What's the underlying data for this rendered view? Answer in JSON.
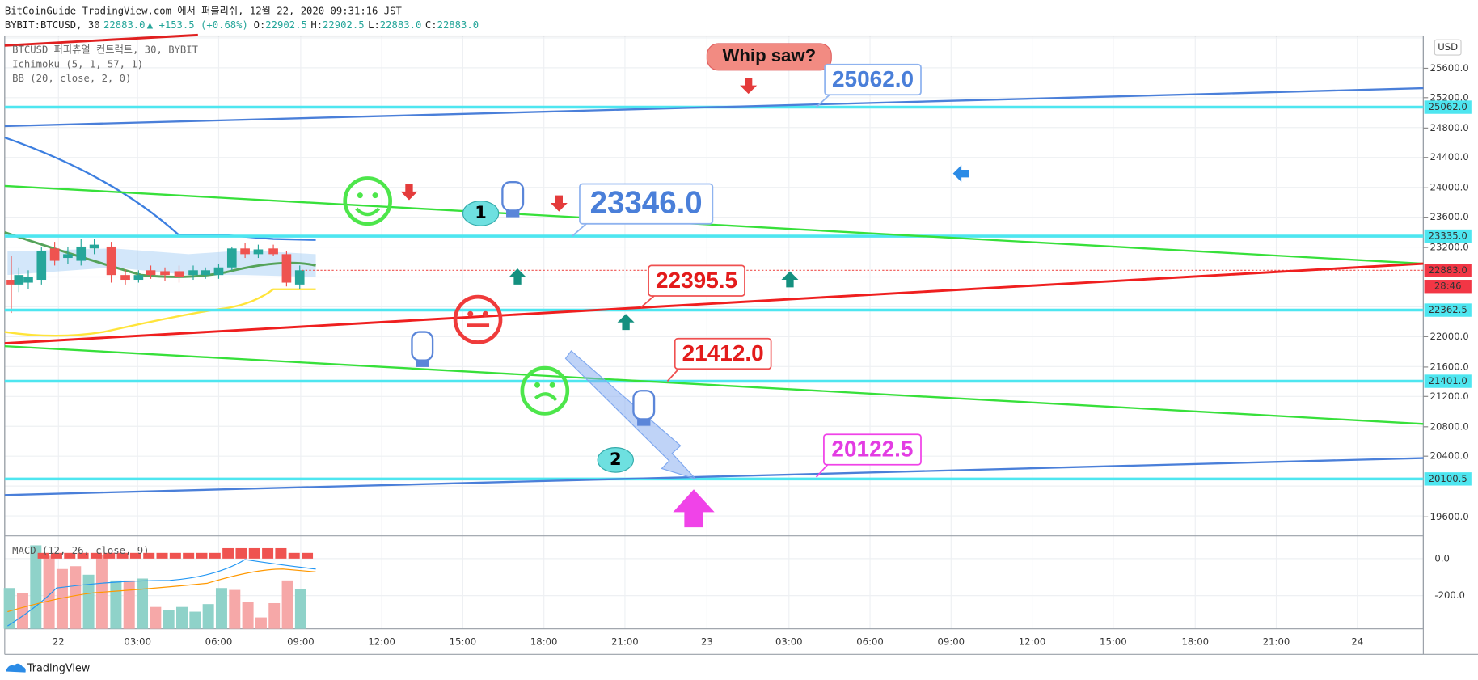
{
  "header": {
    "publisher": "BitCoinGuide TradingView.com 에서 퍼블리쉬, 12월 22, 2020 09:31:16 JST",
    "symbol": "BYBIT:BTCUSD, 30",
    "last": "22883.0",
    "change": "▲ +153.5 (+0.68%)",
    "ohlc": [
      {
        "label": "O:",
        "value": "22902.5"
      },
      {
        "label": "H:",
        "value": "22902.5"
      },
      {
        "label": "L:",
        "value": "22883.0"
      },
      {
        "label": "C:",
        "value": "22883.0"
      }
    ]
  },
  "legend": [
    "BTCUSD 퍼피츄얼 컨트랙트, 30, BYBIT",
    "Ichimoku (5, 1, 57, 1)",
    "BB (20, close, 2, 0)"
  ],
  "macd_legend": "MACD (12, 26, close, 9)",
  "currency": "USD",
  "price_axis": [
    "25600.0",
    "25200.0",
    "24800.0",
    "24400.0",
    "24000.0",
    "23600.0",
    "23200.0",
    "22000.0",
    "21600.0",
    "21200.0",
    "20800.0",
    "20400.0",
    "19600.0"
  ],
  "price_markers": [
    "25062.0",
    "23335.0",
    "22883.0",
    "28:46",
    "22362.5",
    "21401.0",
    "20100.5"
  ],
  "macd_axis": [
    "0.0",
    "-200.0"
  ],
  "time_axis": [
    "22",
    "03:00",
    "06:00",
    "09:00",
    "12:00",
    "15:00",
    "18:00",
    "21:00",
    "23",
    "03:00",
    "06:00",
    "09:00",
    "12:00",
    "15:00",
    "18:00",
    "21:00",
    "24"
  ],
  "annotations": {
    "whipsaw": "Whip saw?",
    "labels": [
      "25062.0",
      "23346.0",
      "22395.5",
      "21412.0",
      "20122.5"
    ],
    "bubbles": [
      "1",
      "2"
    ]
  },
  "footer": "TradingView"
}
